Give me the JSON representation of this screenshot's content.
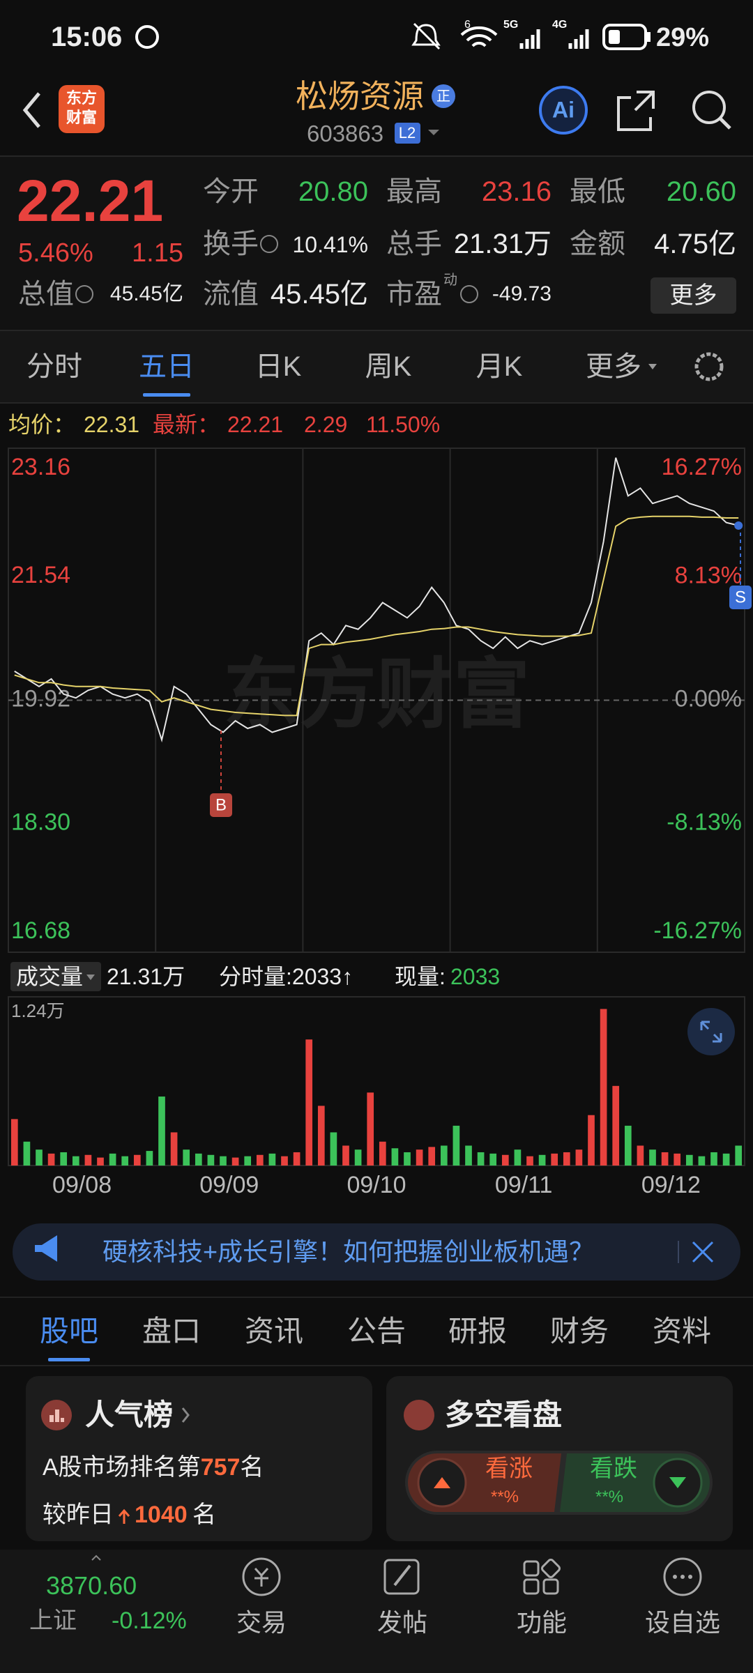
{
  "status_bar": {
    "time": "15:06",
    "wifi_label": "6",
    "signal_labels": [
      "5G",
      "4G"
    ],
    "battery": "29%"
  },
  "header": {
    "logo": [
      "东方",
      "财富"
    ],
    "title": "松炀资源",
    "badge": "正",
    "code": "603863",
    "level": "L2",
    "ai_label": "Ai"
  },
  "quote": {
    "price": "22.21",
    "change_pct": "5.46%",
    "change": "1.15",
    "fields": [
      {
        "label": "今开",
        "value": "20.80"
      },
      {
        "label": "最高",
        "value": "23.16"
      },
      {
        "label": "最低",
        "value": "20.60"
      },
      {
        "label": "换手",
        "value": "10.41%"
      },
      {
        "label": "总手",
        "value": "21.31万"
      },
      {
        "label": "金额",
        "value": "4.75亿"
      },
      {
        "label": "总值",
        "value": "45.45亿"
      },
      {
        "label": "流值",
        "value": "45.45亿"
      },
      {
        "label": "市盈",
        "sup": "动",
        "value": "-49.73"
      }
    ],
    "more": "更多"
  },
  "chart_tabs": {
    "items": [
      "分时",
      "五日",
      "日K",
      "周K",
      "月K",
      "更多"
    ],
    "active": 1
  },
  "info_line": {
    "avg_label": "均价：",
    "avg": "22.31",
    "last_label": "最新：",
    "last": "22.21",
    "change": "2.29",
    "change_pct": "11.50%"
  },
  "chart_data": {
    "type": "line",
    "watermark": "东方财富",
    "days": [
      "09/08",
      "09/09",
      "09/10",
      "09/11",
      "09/12"
    ],
    "ylim": [
      16.68,
      23.16
    ],
    "yticks": [
      23.16,
      21.54,
      19.92,
      {
        "value": 18.3,
        "label": "18.30"
      },
      16.68
    ],
    "y2lim": [
      -16.27,
      16.27
    ],
    "y2ticks": [
      {
        "value": 16.27,
        "label": "16.27%"
      },
      {
        "value": 8.13,
        "label": "8.13%"
      },
      {
        "value": 0,
        "label": "0.00%"
      },
      {
        "value": -8.13,
        "label": "-8.13%"
      },
      {
        "value": -16.27,
        "label": "-16.27%"
      }
    ],
    "up_color": "#e8423e",
    "down_color": "#3cc25a",
    "series": [
      {
        "color": "#e6e6e6",
        "values": [
          20.3,
          20.2,
          20.1,
          20.2,
          20.0,
          19.95,
          20.05,
          20.1,
          20.0,
          19.95,
          20.0,
          19.9,
          19.4,
          20.1,
          20.0,
          19.8,
          19.6,
          19.5,
          19.65,
          19.55,
          19.6,
          19.5,
          19.55,
          19.6,
          20.7,
          20.8,
          20.65,
          20.9,
          20.85,
          21.0,
          21.2,
          21.1,
          21.0,
          21.15,
          21.4,
          21.2,
          20.9,
          20.85,
          20.7,
          20.6,
          20.75,
          20.6,
          20.7,
          20.65,
          20.7,
          20.75,
          20.8,
          21.2,
          22.0,
          23.1,
          22.6,
          22.7,
          22.5,
          22.55,
          22.6,
          22.5,
          22.45,
          22.4,
          22.25,
          22.21
        ]
      },
      {
        "color": "#e6d36a",
        "values": [
          20.25,
          20.2,
          20.15,
          20.15,
          20.12,
          20.1,
          20.1,
          20.1,
          20.08,
          20.07,
          20.06,
          20.05,
          19.9,
          19.95,
          19.9,
          19.85,
          19.8,
          19.78,
          19.76,
          19.75,
          19.74,
          19.73,
          19.72,
          19.72,
          20.6,
          20.65,
          20.65,
          20.68,
          20.7,
          20.72,
          20.75,
          20.78,
          20.8,
          20.82,
          20.85,
          20.86,
          20.88,
          20.88,
          20.85,
          20.82,
          20.8,
          20.78,
          20.77,
          20.76,
          20.76,
          20.76,
          20.77,
          20.8,
          21.5,
          22.2,
          22.3,
          22.32,
          22.33,
          22.33,
          22.33,
          22.33,
          22.32,
          22.32,
          22.31,
          22.31
        ]
      }
    ],
    "buy_marker": "B",
    "sell_marker": "S"
  },
  "volume": {
    "label": "成交量",
    "total": "21.31万",
    "tick_volume": "分时量:2033↑",
    "current_label": "现量:",
    "current": "2033",
    "ylim": [
      0,
      12400
    ],
    "yticks": [
      {
        "value": 12400,
        "label": "1.24万"
      }
    ],
    "values": [
      3500,
      1800,
      1200,
      900,
      1000,
      700,
      800,
      600,
      900,
      700,
      800,
      1100,
      5200,
      2500,
      1200,
      900,
      800,
      700,
      600,
      700,
      800,
      900,
      700,
      1000,
      9500,
      4500,
      2500,
      1500,
      1200,
      5500,
      1800,
      1300,
      1000,
      1200,
      1400,
      1500,
      3000,
      1500,
      1000,
      900,
      800,
      1200,
      700,
      800,
      900,
      1000,
      1200,
      3800,
      11800,
      6000,
      3000,
      1500,
      1200,
      1000,
      900,
      800,
      700,
      1000,
      900,
      1500
    ]
  },
  "banner": {
    "text": "硬核科技+成长引擎！如何把握创业板机遇？"
  },
  "info_tabs": {
    "items": [
      "股吧",
      "盘口",
      "资讯",
      "公告",
      "研报",
      "财务",
      "资料"
    ],
    "active": 0
  },
  "cards": {
    "popularity": {
      "title": "人气榜",
      "rank_prefix": "A股市场排名第",
      "rank": "757",
      "rank_suffix": "名",
      "change_prefix": "较昨日",
      "change": "1040",
      "change_suffix": "名"
    },
    "sentiment": {
      "title": "多空看盘",
      "bull": "看涨",
      "bull_value": "**%",
      "bear": "看跌",
      "bear_value": "**%"
    }
  },
  "bottom_nav": {
    "index_value": "3870.60",
    "index_name": "上证",
    "index_change": "-0.12%",
    "items": [
      "交易",
      "发帖",
      "功能",
      "设自选"
    ]
  }
}
